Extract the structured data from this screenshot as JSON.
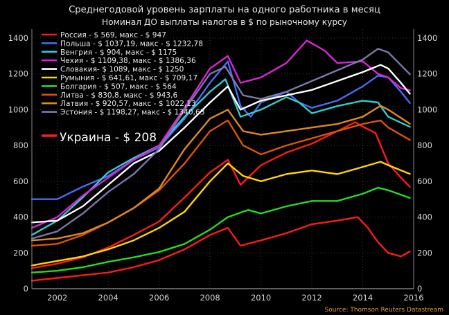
{
  "chart_data": {
    "type": "line",
    "title": "Среднегодовой уровень зарплаты на одного работника в месяц",
    "subtitle": "Номинал ДО выплаты налогов в $ по рыночному курсу",
    "source": "Source: Thomson Reuters Datastream",
    "annotation": "Украина - $ 208",
    "xlim": [
      2001,
      2016
    ],
    "ylim": [
      0,
      1450
    ],
    "x_ticks": [
      2002,
      2004,
      2006,
      2008,
      2010,
      2012,
      2014,
      2016
    ],
    "y_ticks": [
      0,
      200,
      400,
      600,
      800,
      1000,
      1200,
      1400
    ],
    "x_tick_labels": [
      "2002",
      "2004",
      "2006",
      "2008",
      "2010",
      "2012",
      "2014",
      "2016"
    ],
    "y_tick_labels": [
      "0",
      "200",
      "400",
      "600",
      "800",
      "1000",
      "1200",
      "1400"
    ],
    "grid": true,
    "legend_position": "top-left",
    "series": [
      {
        "name": "Россия - $ 569, макс - $ 947",
        "color": "#ff1a1a",
        "x": [
          2001,
          2002,
          2003,
          2004,
          2005,
          2006,
          2007,
          2008,
          2008.7,
          2009.2,
          2010,
          2011,
          2012,
          2013,
          2013.7,
          2014,
          2014.5,
          2015,
          2015.5,
          2015.85
        ],
        "y": [
          115,
          140,
          175,
          230,
          300,
          375,
          510,
          650,
          720,
          580,
          690,
          760,
          810,
          880,
          930,
          905,
          870,
          700,
          620,
          569
        ]
      },
      {
        "name": "Польша - $ 1037,19, макс - $ 1232,78",
        "color": "#4a6cf7",
        "x": [
          2001,
          2002,
          2003,
          2004,
          2005,
          2006,
          2007,
          2008,
          2008.7,
          2009.2,
          2009.6,
          2010,
          2011,
          2011.5,
          2012,
          2013,
          2014,
          2014.6,
          2015,
          2015.5,
          2015.85
        ],
        "y": [
          500,
          500,
          570,
          630,
          720,
          790,
          950,
          1150,
          1270,
          1020,
          960,
          1040,
          1100,
          1040,
          1010,
          1050,
          1130,
          1190,
          1180,
          1100,
          1037
        ]
      },
      {
        "name": "Венгрия - $ 904, макс - $ 1175",
        "color": "#33cccc",
        "x": [
          2001,
          2002,
          2003,
          2004,
          2005,
          2006,
          2007,
          2008,
          2008.6,
          2009.2,
          2010,
          2011,
          2011.5,
          2012,
          2013,
          2014,
          2014.6,
          2015,
          2015.85
        ],
        "y": [
          300,
          380,
          510,
          650,
          730,
          800,
          960,
          1100,
          1170,
          960,
          1000,
          1070,
          1040,
          980,
          1020,
          1050,
          1040,
          960,
          904
        ]
      },
      {
        "name": "Чехия - $ 1109,38, макс - $ 1386,36",
        "color": "#dd22dd",
        "x": [
          2001,
          2002,
          2003,
          2004,
          2005,
          2006,
          2007,
          2008,
          2008.7,
          2009.2,
          2010,
          2011,
          2011.8,
          2012.5,
          2013,
          2014,
          2014.6,
          2015,
          2015.5,
          2015.85
        ],
        "y": [
          340,
          400,
          520,
          620,
          720,
          800,
          1010,
          1230,
          1300,
          1150,
          1180,
          1260,
          1386,
          1330,
          1260,
          1270,
          1200,
          1180,
          1120,
          1109
        ]
      },
      {
        "name": "Словакия- $ 1089, макс - $ 1250",
        "color": "#ffffff",
        "x": [
          2001,
          2002,
          2003,
          2004,
          2005,
          2006,
          2007,
          2008,
          2008.7,
          2009.2,
          2010,
          2011,
          2012,
          2013,
          2014,
          2014.7,
          2015,
          2015.5,
          2015.85
        ],
        "y": [
          370,
          380,
          460,
          580,
          700,
          770,
          900,
          1040,
          1130,
          1000,
          1050,
          1080,
          1110,
          1160,
          1210,
          1250,
          1230,
          1150,
          1089
        ]
      },
      {
        "name": "Румыния - $ 641,61, макс - $ 709,17",
        "color": "#ffd700",
        "x": [
          2001,
          2002,
          2003,
          2004,
          2005,
          2006,
          2007,
          2008,
          2008.7,
          2009.3,
          2010,
          2011,
          2012,
          2013,
          2014,
          2014.7,
          2015,
          2015.85
        ],
        "y": [
          130,
          155,
          180,
          220,
          270,
          340,
          430,
          600,
          700,
          630,
          600,
          640,
          660,
          640,
          680,
          709,
          690,
          641
        ]
      },
      {
        "name": "Болгария - $ 507, макс - $ 564",
        "color": "#22dd22",
        "x": [
          2001,
          2002,
          2003,
          2004,
          2005,
          2006,
          2007,
          2008,
          2008.7,
          2009.5,
          2010,
          2011,
          2012,
          2013,
          2014,
          2014.6,
          2015,
          2015.85
        ],
        "y": [
          90,
          100,
          120,
          150,
          175,
          205,
          250,
          330,
          400,
          440,
          420,
          460,
          490,
          490,
          530,
          564,
          550,
          507
        ]
      },
      {
        "name": "Литва  - $ 830,8, макс - $ 943,6",
        "color": "#dd5500",
        "x": [
          2001,
          2002,
          2003,
          2004,
          2005,
          2006,
          2007,
          2008,
          2008.7,
          2009.3,
          2010,
          2011,
          2012,
          2013,
          2014,
          2014.7,
          2015,
          2015.85
        ],
        "y": [
          240,
          250,
          300,
          370,
          450,
          550,
          700,
          880,
          940,
          800,
          750,
          800,
          840,
          880,
          920,
          940,
          900,
          831
        ]
      },
      {
        "name": "Латвия  - $ 920,57, макс - $ 1022,13",
        "color": "#e08a1e",
        "x": [
          2001,
          2002,
          2003,
          2004,
          2005,
          2006,
          2007,
          2008,
          2008.7,
          2009.3,
          2010,
          2011,
          2012,
          2013,
          2014,
          2014.7,
          2015,
          2015.85
        ],
        "y": [
          270,
          280,
          310,
          370,
          450,
          560,
          780,
          950,
          1000,
          880,
          860,
          880,
          900,
          920,
          960,
          1022,
          1000,
          921
        ]
      },
      {
        "name": "Эстония - $ 1198,27, макс - $ 1340,63",
        "color": "#7a7aaa",
        "x": [
          2001,
          2002,
          2003,
          2004,
          2005,
          2006,
          2007,
          2008,
          2008.6,
          2009.3,
          2010,
          2011,
          2012,
          2013,
          2014,
          2014.6,
          2015,
          2015.85
        ],
        "y": [
          280,
          320,
          420,
          540,
          640,
          780,
          1000,
          1200,
          1240,
          1080,
          1060,
          1100,
          1160,
          1220,
          1280,
          1340,
          1320,
          1198
        ]
      },
      {
        "name": "Украина",
        "color": "#ff1a1a",
        "x": [
          2001,
          2002,
          2003,
          2004,
          2005,
          2006,
          2007,
          2008,
          2008.7,
          2009.2,
          2010,
          2011,
          2012,
          2013,
          2013.8,
          2014.2,
          2014.6,
          2015,
          2015.5,
          2015.85
        ],
        "y": [
          45,
          60,
          75,
          90,
          120,
          160,
          220,
          300,
          340,
          240,
          270,
          310,
          360,
          380,
          400,
          340,
          260,
          200,
          180,
          208
        ]
      }
    ]
  }
}
